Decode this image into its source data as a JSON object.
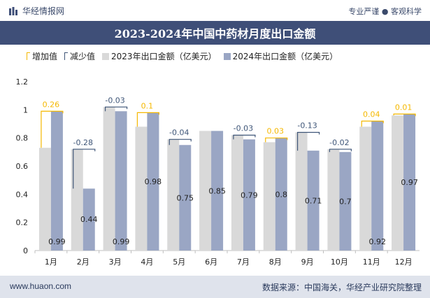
{
  "header": {
    "brand": "华经情报网",
    "tagline": "专业严谨 ● 客观科学"
  },
  "title": "2023-2024年中国中药材月度出口金额",
  "legend": {
    "increase": "增加值",
    "decrease": "减少值",
    "series_2023": "2023年出口金额（亿美元）",
    "series_2024": "2024年出口金额（亿美元）"
  },
  "colors": {
    "s2023": "#d9d9d9",
    "s2024": "#9aa6c4",
    "increase": "#f5b800",
    "decrease": "#3f5678",
    "titlebar": "#3f4f78"
  },
  "footer": {
    "url": "www.huaon.com",
    "source": "数据来源：中国海关，华经产业研究院整理"
  },
  "chart_data": {
    "type": "bar",
    "categories": [
      "1月",
      "2月",
      "3月",
      "4月",
      "5月",
      "6月",
      "7月",
      "8月",
      "9月",
      "10月",
      "11月",
      "12月"
    ],
    "series": [
      {
        "name": "2023年出口金额（亿美元）",
        "values": [
          0.73,
          0.72,
          1.02,
          0.88,
          0.79,
          0.85,
          0.82,
          0.77,
          0.84,
          0.72,
          0.88,
          0.96
        ]
      },
      {
        "name": "2024年出口金额（亿美元）",
        "values": [
          0.99,
          0.44,
          0.99,
          0.98,
          0.75,
          0.85,
          0.79,
          0.8,
          0.71,
          0.7,
          0.92,
          0.97
        ]
      }
    ],
    "changes": [
      0.26,
      -0.28,
      -0.03,
      0.1,
      -0.04,
      null,
      -0.03,
      0.03,
      -0.13,
      -0.02,
      0.04,
      0.01
    ],
    "y_ticks": [
      "0",
      "0.2",
      "0.4",
      "0.6",
      "0.8",
      "1",
      "1.2"
    ],
    "ylim": [
      0,
      1.2
    ],
    "grid": false,
    "legend_position": "top-left"
  }
}
